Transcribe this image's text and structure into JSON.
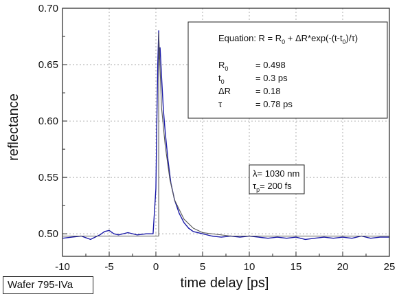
{
  "chart_data": {
    "type": "line",
    "xlabel": "time delay [ps]",
    "ylabel": "reflectance",
    "xlim": [
      -10,
      25
    ],
    "ylim": [
      0.48,
      0.7
    ],
    "xticks": [
      -10,
      -5,
      0,
      5,
      10,
      15,
      20,
      25
    ],
    "yticks": [
      0.5,
      0.55,
      0.6,
      0.65,
      0.7
    ],
    "grid": true,
    "series": [
      {
        "kind": "measured",
        "color": "#1a1aa8",
        "x": [
          -10,
          -9,
          -8,
          -7,
          -6,
          -5.5,
          -5,
          -4.5,
          -4,
          -3,
          -2,
          -1,
          -0.3,
          0,
          0.1,
          0.2,
          0.3,
          0.35,
          0.45,
          0.6,
          0.8,
          1.0,
          1.3,
          1.6,
          2.0,
          2.5,
          3.0,
          3.5,
          4.0,
          5,
          6,
          7,
          8,
          9,
          10,
          11,
          12,
          13,
          14,
          15,
          16,
          17,
          18,
          19,
          20,
          21,
          22,
          23,
          24,
          25
        ],
        "y": [
          0.496,
          0.497,
          0.498,
          0.495,
          0.499,
          0.502,
          0.503,
          0.5,
          0.499,
          0.501,
          0.499,
          0.5,
          0.5,
          0.54,
          0.6,
          0.65,
          0.68,
          0.655,
          0.665,
          0.64,
          0.61,
          0.59,
          0.565,
          0.545,
          0.53,
          0.518,
          0.51,
          0.505,
          0.502,
          0.5,
          0.498,
          0.497,
          0.498,
          0.497,
          0.498,
          0.497,
          0.496,
          0.497,
          0.496,
          0.497,
          0.495,
          0.496,
          0.497,
          0.496,
          0.497,
          0.496,
          0.498,
          0.496,
          0.497,
          0.497
        ]
      },
      {
        "kind": "fit",
        "color": "#555555",
        "x": [
          -10,
          0.3,
          0.3,
          0.6,
          1.0,
          1.5,
          2.0,
          3.0,
          4.0,
          5,
          8,
          12,
          16,
          20,
          25
        ],
        "y": [
          0.498,
          0.498,
          0.678,
          0.612,
          0.578,
          0.548,
          0.53,
          0.513,
          0.505,
          0.501,
          0.498,
          0.498,
          0.498,
          0.498,
          0.498
        ]
      }
    ]
  },
  "annotations": {
    "equation": {
      "prefix": "Equation: R = R",
      "sub0": "0",
      "middle": " + ΔR*exp(-(t-t",
      "sub1": "0",
      "suffix": ")/τ)"
    },
    "params": [
      {
        "sym": "R",
        "sub": "0",
        "val": "= 0.498"
      },
      {
        "sym": "t",
        "sub": "0",
        "val": "= 0.3 ps"
      },
      {
        "sym": "ΔR",
        "sub": "",
        "val": "= 0.18"
      },
      {
        "sym": "τ",
        "sub": "",
        "val": "= 0.78 ps"
      }
    ],
    "laser": {
      "line1": "λ= 1030 nm",
      "line2_sym": "τ",
      "line2_sub": "p",
      "line2_val": "= 200 fs"
    }
  },
  "sample_label": "Wafer 795-IVa"
}
